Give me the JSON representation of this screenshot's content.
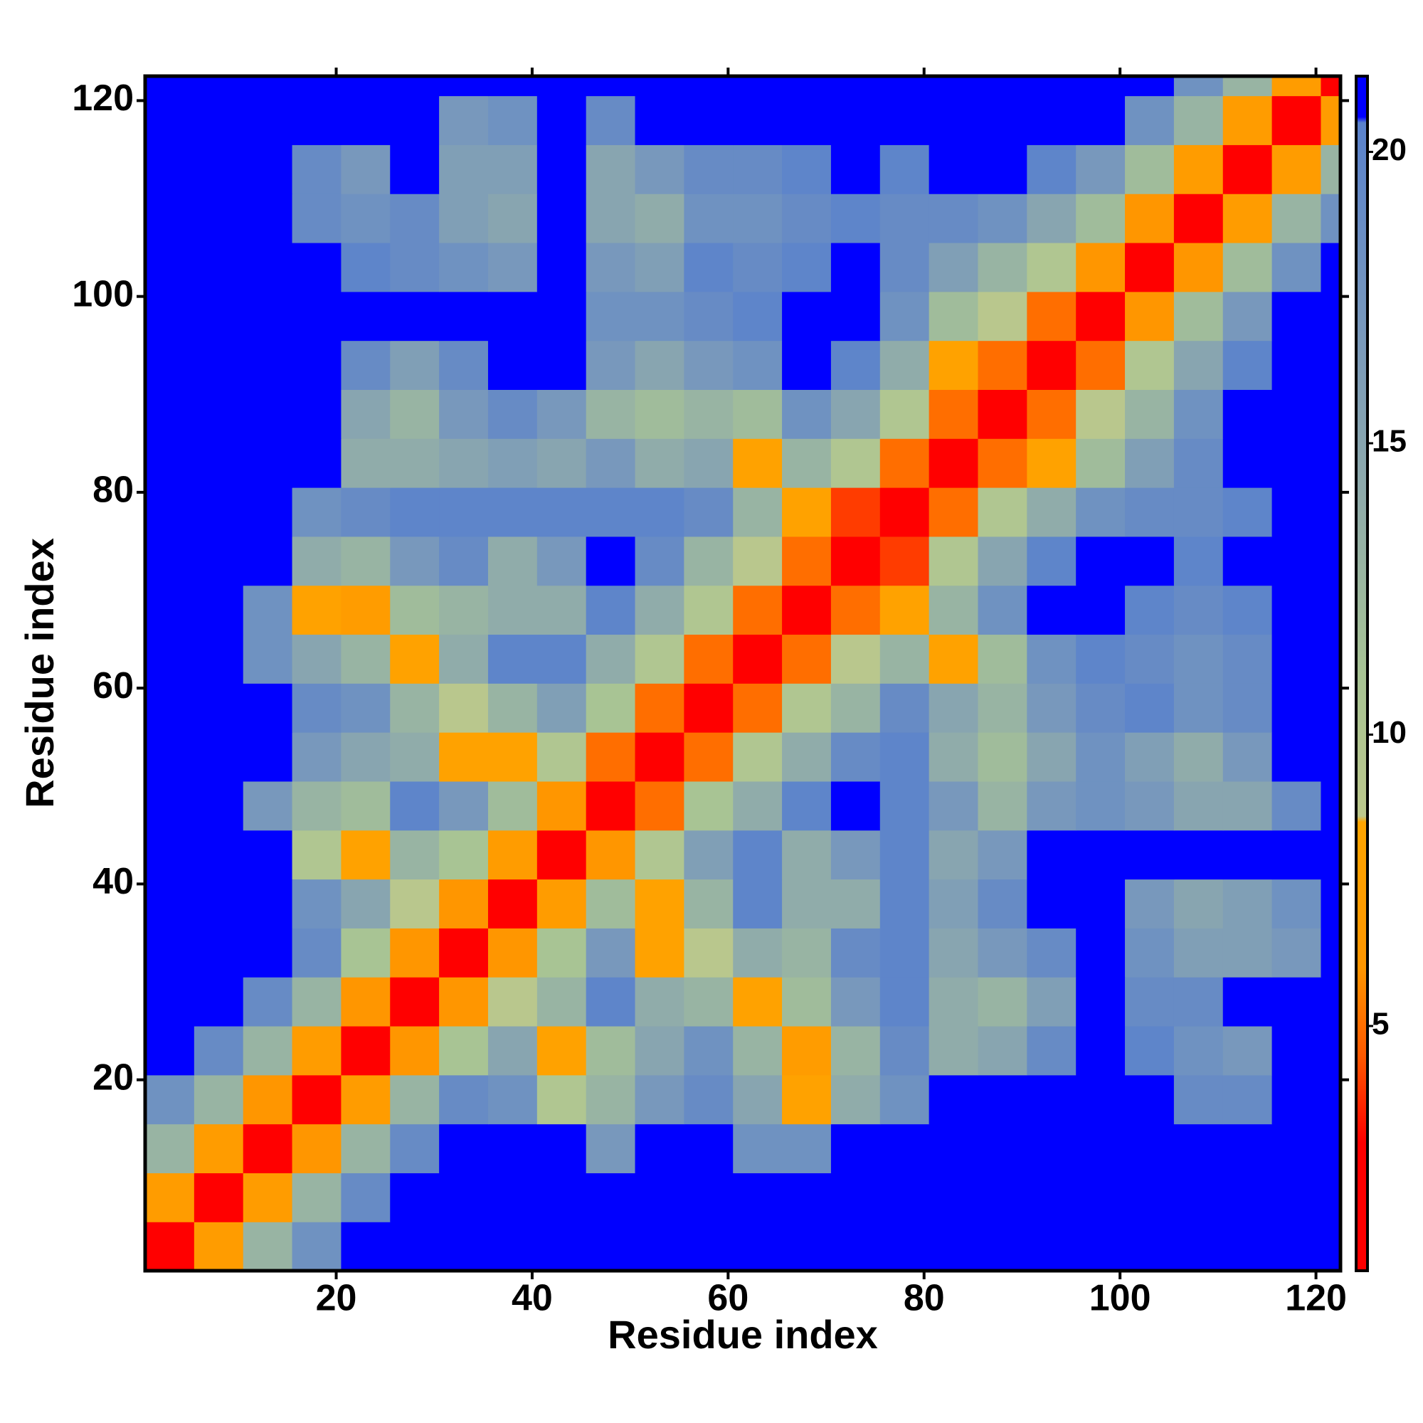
{
  "chart_data": {
    "type": "heatmap",
    "xlabel": "Residue index",
    "ylabel": "Residue index",
    "x": [
      3,
      8,
      13,
      18,
      23,
      28,
      33,
      38,
      43,
      48,
      53,
      58,
      63,
      68,
      73,
      78,
      83,
      88,
      93,
      98,
      103,
      108,
      113,
      118,
      123
    ],
    "y": [
      3,
      8,
      13,
      18,
      23,
      28,
      33,
      38,
      43,
      48,
      53,
      58,
      63,
      68,
      73,
      78,
      83,
      88,
      93,
      98,
      103,
      108,
      113,
      118,
      123
    ],
    "z": [
      [
        2,
        7,
        13,
        18,
        21,
        21,
        21,
        21,
        21,
        21,
        21,
        21,
        21,
        21,
        21,
        21,
        21,
        21,
        21,
        21,
        21,
        21,
        21,
        21,
        21
      ],
      [
        7,
        2,
        7,
        13,
        19,
        21,
        21,
        21,
        21,
        21,
        21,
        21,
        21,
        21,
        21,
        21,
        21,
        21,
        21,
        21,
        21,
        21,
        21,
        21,
        21
      ],
      [
        13,
        7,
        2,
        6,
        13,
        19,
        21,
        21,
        21,
        17,
        21,
        21,
        18,
        18,
        21,
        21,
        21,
        21,
        21,
        21,
        21,
        21,
        21,
        21,
        21
      ],
      [
        18,
        13,
        6,
        2,
        7,
        13,
        19,
        18,
        10,
        13,
        17,
        19,
        15,
        8,
        14,
        18,
        21,
        21,
        21,
        21,
        21,
        19,
        19,
        21,
        21
      ],
      [
        21,
        19,
        13,
        7,
        2,
        6,
        11,
        15,
        8,
        12,
        15,
        18,
        13,
        7,
        13,
        19,
        14,
        15,
        19,
        21,
        20,
        18,
        17,
        21,
        21
      ],
      [
        21,
        21,
        19,
        13,
        6,
        2,
        6,
        9,
        13,
        20,
        14,
        13,
        8,
        12,
        17,
        20,
        14,
        13,
        16,
        21,
        19,
        19,
        21,
        21,
        21
      ],
      [
        21,
        21,
        21,
        19,
        11,
        6,
        2,
        6,
        11,
        17,
        8,
        9,
        14,
        13,
        19,
        20,
        15,
        17,
        19,
        21,
        18,
        16,
        16,
        17,
        21
      ],
      [
        21,
        21,
        21,
        18,
        15,
        9,
        6,
        2,
        7,
        12,
        8,
        13,
        20,
        14,
        14,
        20,
        16,
        19,
        21,
        21,
        17,
        15,
        16,
        18,
        21
      ],
      [
        21,
        21,
        21,
        10,
        8,
        13,
        11,
        7,
        2,
        6,
        10,
        16,
        20,
        14,
        17,
        20,
        15,
        17,
        21,
        21,
        21,
        21,
        21,
        21,
        21
      ],
      [
        21,
        21,
        17,
        13,
        12,
        20,
        17,
        12,
        6,
        2,
        5,
        11,
        14,
        20,
        21,
        20,
        17,
        13,
        17,
        18,
        17,
        15,
        15,
        19,
        21
      ],
      [
        21,
        21,
        21,
        17,
        15,
        14,
        8,
        8,
        10,
        5,
        2,
        5,
        10,
        14,
        19,
        20,
        14,
        12,
        15,
        18,
        16,
        14,
        17,
        21,
        21
      ],
      [
        21,
        21,
        21,
        19,
        18,
        13,
        9,
        13,
        16,
        11,
        5,
        2,
        5,
        10,
        13,
        19,
        15,
        13,
        17,
        19,
        20,
        18,
        19,
        21,
        21
      ],
      [
        21,
        21,
        18,
        15,
        13,
        8,
        14,
        20,
        20,
        14,
        10,
        5,
        2,
        5,
        9,
        13,
        8,
        12,
        18,
        20,
        19,
        18,
        19,
        21,
        21
      ],
      [
        21,
        21,
        18,
        8,
        7,
        12,
        13,
        14,
        14,
        20,
        14,
        10,
        5,
        2,
        5,
        8,
        13,
        18,
        21,
        21,
        20,
        19,
        20,
        21,
        21
      ],
      [
        21,
        21,
        21,
        14,
        13,
        17,
        19,
        14,
        17,
        21,
        19,
        13,
        9,
        5,
        2,
        4,
        10,
        15,
        20,
        21,
        21,
        20,
        21,
        21,
        21
      ],
      [
        21,
        21,
        21,
        18,
        19,
        20,
        20,
        20,
        20,
        20,
        20,
        19,
        13,
        8,
        4,
        2,
        5,
        10,
        14,
        18,
        19,
        19,
        20,
        21,
        21
      ],
      [
        21,
        21,
        21,
        21,
        14,
        14,
        15,
        16,
        15,
        17,
        14,
        15,
        8,
        13,
        10,
        5,
        2,
        5,
        8,
        12,
        16,
        19,
        21,
        21,
        21
      ],
      [
        21,
        21,
        21,
        21,
        15,
        13,
        17,
        19,
        17,
        13,
        12,
        13,
        12,
        18,
        15,
        10,
        5,
        2,
        5,
        9,
        13,
        18,
        21,
        21,
        21
      ],
      [
        21,
        21,
        21,
        21,
        19,
        16,
        19,
        21,
        21,
        17,
        15,
        17,
        18,
        21,
        20,
        14,
        8,
        5,
        2,
        5,
        10,
        15,
        20,
        21,
        21
      ],
      [
        21,
        21,
        21,
        21,
        21,
        21,
        21,
        21,
        21,
        18,
        18,
        19,
        20,
        21,
        21,
        18,
        12,
        9,
        5,
        2,
        6,
        12,
        17,
        21,
        21
      ],
      [
        21,
        21,
        21,
        21,
        20,
        19,
        18,
        17,
        21,
        17,
        16,
        20,
        19,
        20,
        21,
        19,
        16,
        13,
        10,
        6,
        2,
        6,
        12,
        18,
        21
      ],
      [
        21,
        21,
        21,
        19,
        18,
        19,
        16,
        15,
        21,
        15,
        14,
        18,
        18,
        19,
        20,
        19,
        19,
        18,
        15,
        12,
        6,
        2,
        7,
        13,
        18
      ],
      [
        21,
        21,
        21,
        19,
        17,
        21,
        16,
        16,
        21,
        15,
        17,
        19,
        19,
        20,
        21,
        20,
        21,
        21,
        20,
        17,
        12,
        7,
        2,
        7,
        13
      ],
      [
        21,
        21,
        21,
        21,
        21,
        21,
        17,
        18,
        21,
        19,
        21,
        21,
        21,
        21,
        21,
        21,
        21,
        21,
        21,
        21,
        18,
        13,
        7,
        2,
        7
      ],
      [
        21,
        21,
        21,
        21,
        21,
        21,
        21,
        21,
        21,
        21,
        21,
        21,
        21,
        21,
        21,
        21,
        21,
        21,
        21,
        21,
        21,
        18,
        13,
        7,
        2
      ]
    ],
    "xlim": [
      0.5,
      122.5
    ],
    "ylim": [
      0.5,
      122.5
    ],
    "xticks": [
      20,
      40,
      60,
      80,
      100,
      120
    ],
    "yticks": [
      20,
      40,
      60,
      80,
      100,
      120
    ],
    "zlim": [
      0.8,
      21.3
    ],
    "colorbar_ticks": [
      5,
      10,
      15,
      20
    ],
    "colorscale": [
      [
        0.8,
        "#ff0000"
      ],
      [
        3,
        "#ff0000"
      ],
      [
        4.5,
        "#ff5a00"
      ],
      [
        6,
        "#ff9600"
      ],
      [
        8.5,
        "#ffa500"
      ],
      [
        8.6,
        "#bcc88c"
      ],
      [
        11,
        "#a8c494"
      ],
      [
        14,
        "#90acaa"
      ],
      [
        17,
        "#7898bc"
      ],
      [
        20.5,
        "#5a82cc"
      ],
      [
        20.6,
        "#0000ff"
      ],
      [
        21.3,
        "#0000ff"
      ]
    ]
  }
}
